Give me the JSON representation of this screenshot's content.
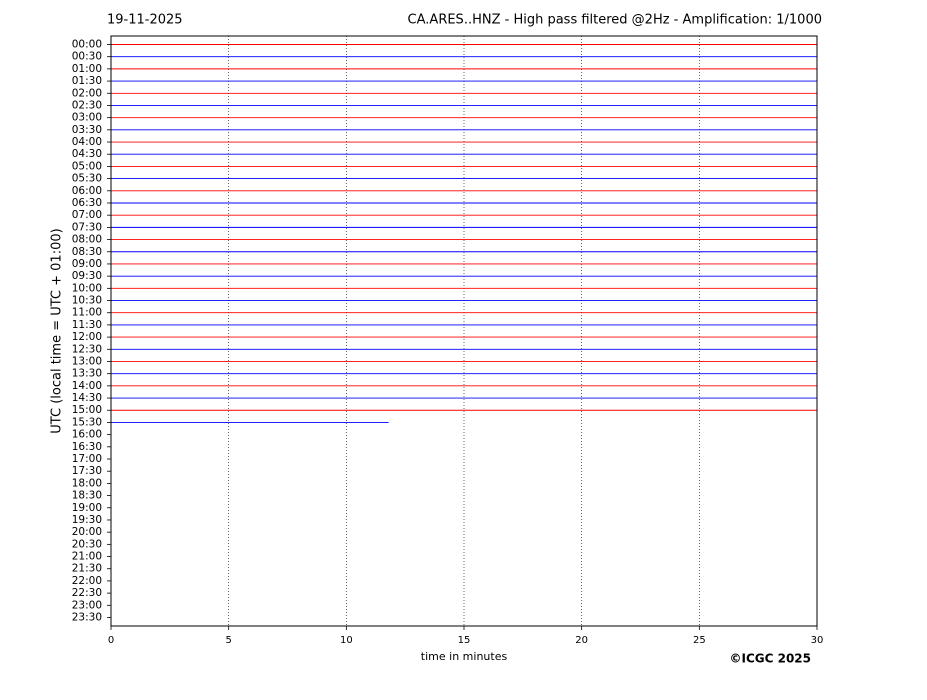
{
  "chart_data": {
    "type": "helicorder",
    "date": "19-11-2025",
    "title": "CA.ARES..HNZ - High pass filtered @2Hz - Amplification: 1/1000",
    "ylabel": "UTC (local time = UTC + 01:00)",
    "xlabel": "time in minutes",
    "credit": "©ICGC 2025",
    "categories": [
      "00:00",
      "00:30",
      "01:00",
      "01:30",
      "02:00",
      "02:30",
      "03:00",
      "03:30",
      "04:00",
      "04:30",
      "05:00",
      "05:30",
      "06:00",
      "06:30",
      "07:00",
      "07:30",
      "08:00",
      "08:30",
      "09:00",
      "09:30",
      "10:00",
      "10:30",
      "11:00",
      "11:30",
      "12:00",
      "12:30",
      "13:00",
      "13:30",
      "14:00",
      "14:30",
      "15:00",
      "15:30",
      "16:00",
      "16:30",
      "17:00",
      "17:30",
      "18:00",
      "18:30",
      "19:00",
      "19:30",
      "20:00",
      "20:30",
      "21:00",
      "21:30",
      "22:00",
      "22:30",
      "23:00",
      "23:30"
    ],
    "trace_end": [
      30,
      30,
      30,
      30,
      30,
      30,
      30,
      30,
      30,
      30,
      30,
      30,
      30,
      30,
      30,
      30,
      30,
      30,
      30,
      30,
      30,
      30,
      30,
      30,
      30,
      30,
      30,
      30,
      30,
      30,
      30,
      11.8,
      null,
      null,
      null,
      null,
      null,
      null,
      null,
      null,
      null,
      null,
      null,
      null,
      null,
      null,
      null,
      null
    ],
    "colors": [
      "#ff0000",
      "#0000ff"
    ],
    "xlim": [
      0,
      30
    ],
    "xticks": [
      0,
      5,
      10,
      15,
      20,
      25,
      30
    ],
    "grid": true
  }
}
